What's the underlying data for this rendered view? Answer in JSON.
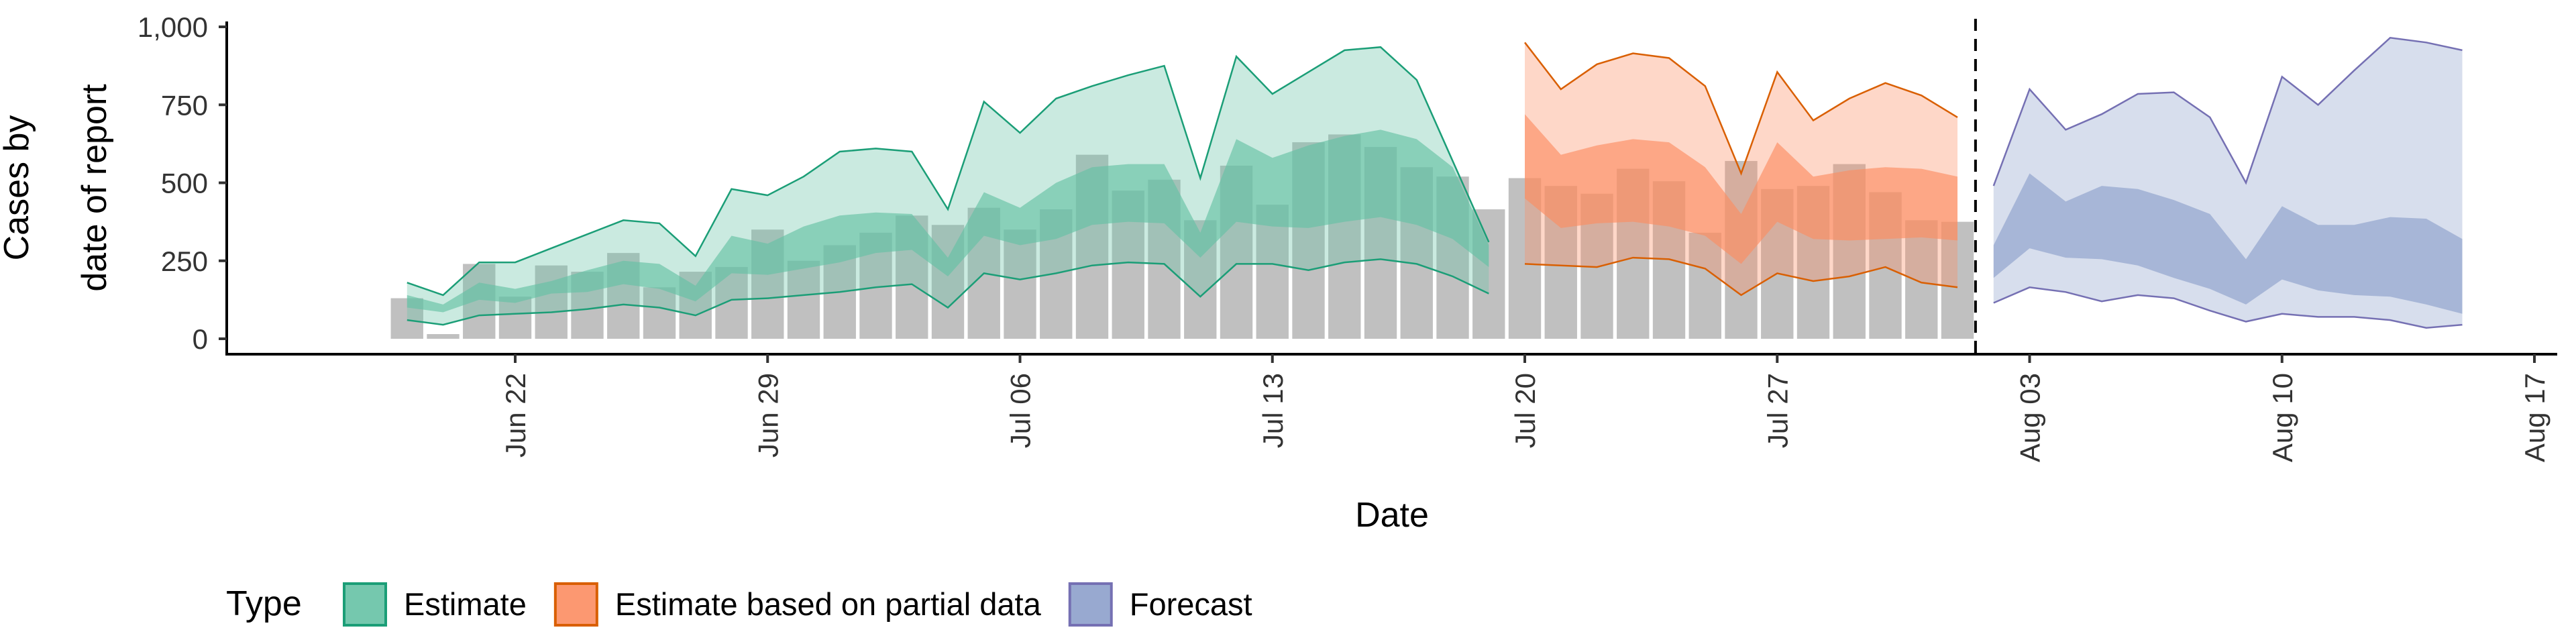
{
  "chart_data": {
    "type": "area",
    "xlabel": "Date",
    "ylabel": [
      "Cases by",
      "date of report"
    ],
    "ylim": [
      0,
      1000
    ],
    "yticks": [
      0,
      250,
      500,
      750,
      1000
    ],
    "ytick_labels": [
      "0",
      "250",
      "500",
      "750",
      "1,000"
    ],
    "xlim": [
      "2020-06-14",
      "2020-08-17"
    ],
    "xticks": [
      "2020-06-22",
      "2020-06-29",
      "2020-07-06",
      "2020-07-13",
      "2020-07-20",
      "2020-07-27",
      "2020-08-03",
      "2020-08-10",
      "2020-08-17"
    ],
    "xtick_labels": [
      "Jun 22",
      "Jun 29",
      "Jul 06",
      "Jul 13",
      "Jul 20",
      "Jul 27",
      "Aug 03",
      "Aug 10",
      "Aug 17"
    ],
    "forecast_date": "2020-08-01",
    "legend_title": "Type",
    "legend_position": "bottom",
    "grid": false,
    "colors": {
      "bar": "#c0c0c0",
      "Estimate": {
        "fill": "#66c2a5",
        "line": "#1b9e77"
      },
      "Estimate based on partial data": {
        "fill": "#fc8d62",
        "line": "#d95f02"
      },
      "Forecast": {
        "fill": "#8da0cb",
        "line": "#7570b3"
      }
    },
    "reported_cases": {
      "dates": [
        "2020-06-19",
        "2020-06-20",
        "2020-06-21",
        "2020-06-22",
        "2020-06-23",
        "2020-06-24",
        "2020-06-25",
        "2020-06-26",
        "2020-06-27",
        "2020-06-28",
        "2020-06-29",
        "2020-06-30",
        "2020-07-01",
        "2020-07-02",
        "2020-07-03",
        "2020-07-04",
        "2020-07-05",
        "2020-07-06",
        "2020-07-07",
        "2020-07-08",
        "2020-07-09",
        "2020-07-10",
        "2020-07-11",
        "2020-07-12",
        "2020-07-13",
        "2020-07-14",
        "2020-07-15",
        "2020-07-16",
        "2020-07-17",
        "2020-07-18",
        "2020-07-19",
        "2020-07-20",
        "2020-07-21",
        "2020-07-22",
        "2020-07-23",
        "2020-07-24",
        "2020-07-25",
        "2020-07-26",
        "2020-07-27",
        "2020-07-28",
        "2020-07-29",
        "2020-07-30",
        "2020-07-31",
        "2020-08-01"
      ],
      "values": [
        130,
        15,
        240,
        135,
        235,
        215,
        275,
        165,
        215,
        230,
        350,
        250,
        300,
        340,
        395,
        365,
        420,
        350,
        415,
        590,
        475,
        510,
        380,
        555,
        430,
        630,
        655,
        615,
        550,
        520,
        415,
        515,
        490,
        465,
        545,
        505,
        340,
        570,
        480,
        490,
        560,
        470,
        380,
        375
      ]
    },
    "series": [
      {
        "name": "Estimate",
        "dates": [
          "2020-06-19",
          "2020-06-20",
          "2020-06-21",
          "2020-06-22",
          "2020-06-23",
          "2020-06-24",
          "2020-06-25",
          "2020-06-26",
          "2020-06-27",
          "2020-06-28",
          "2020-06-29",
          "2020-06-30",
          "2020-07-01",
          "2020-07-02",
          "2020-07-03",
          "2020-07-04",
          "2020-07-05",
          "2020-07-06",
          "2020-07-07",
          "2020-07-08",
          "2020-07-09",
          "2020-07-10",
          "2020-07-11",
          "2020-07-12",
          "2020-07-13",
          "2020-07-14",
          "2020-07-15",
          "2020-07-16",
          "2020-07-17",
          "2020-07-18",
          "2020-07-19"
        ],
        "lower_90": [
          60,
          45,
          75,
          80,
          85,
          95,
          110,
          100,
          75,
          125,
          130,
          140,
          150,
          165,
          175,
          100,
          210,
          190,
          210,
          235,
          245,
          240,
          135,
          240,
          240,
          220,
          245,
          255,
          240,
          200,
          145
        ],
        "lower_50": [
          100,
          85,
          125,
          115,
          145,
          150,
          175,
          160,
          120,
          210,
          205,
          225,
          245,
          275,
          285,
          200,
          330,
          300,
          320,
          365,
          375,
          370,
          260,
          375,
          360,
          355,
          375,
          390,
          365,
          320,
          230
        ],
        "upper_50": [
          140,
          110,
          180,
          160,
          185,
          220,
          250,
          240,
          170,
          330,
          305,
          360,
          395,
          405,
          400,
          260,
          470,
          420,
          500,
          550,
          560,
          560,
          340,
          640,
          580,
          620,
          650,
          670,
          640,
          550,
          300
        ],
        "upper_90": [
          180,
          140,
          245,
          245,
          290,
          335,
          380,
          370,
          265,
          480,
          460,
          520,
          600,
          610,
          600,
          415,
          760,
          660,
          770,
          810,
          845,
          875,
          515,
          905,
          785,
          855,
          925,
          935,
          830,
          570,
          310
        ]
      },
      {
        "name": "Estimate based on partial data",
        "dates": [
          "2020-07-20",
          "2020-07-21",
          "2020-07-22",
          "2020-07-23",
          "2020-07-24",
          "2020-07-25",
          "2020-07-26",
          "2020-07-27",
          "2020-07-28",
          "2020-07-29",
          "2020-07-30",
          "2020-07-31",
          "2020-08-01"
        ],
        "lower_90": [
          240,
          235,
          230,
          260,
          255,
          225,
          140,
          210,
          185,
          200,
          230,
          180,
          165
        ],
        "lower_50": [
          450,
          355,
          370,
          375,
          360,
          330,
          240,
          375,
          320,
          315,
          320,
          325,
          315
        ],
        "upper_50": [
          720,
          590,
          620,
          640,
          630,
          550,
          400,
          630,
          520,
          540,
          550,
          545,
          520
        ],
        "upper_90": [
          950,
          800,
          880,
          915,
          900,
          810,
          530,
          855,
          700,
          770,
          820,
          780,
          710
        ]
      },
      {
        "name": "Forecast",
        "dates": [
          "2020-08-02",
          "2020-08-03",
          "2020-08-04",
          "2020-08-05",
          "2020-08-06",
          "2020-08-07",
          "2020-08-08",
          "2020-08-09",
          "2020-08-10",
          "2020-08-11",
          "2020-08-12",
          "2020-08-13",
          "2020-08-14",
          "2020-08-15"
        ],
        "lower_90": [
          115,
          165,
          150,
          120,
          140,
          130,
          90,
          55,
          80,
          70,
          70,
          60,
          35,
          45
        ],
        "lower_50": [
          195,
          290,
          260,
          255,
          235,
          195,
          160,
          110,
          190,
          155,
          140,
          135,
          110,
          80
        ],
        "upper_50": [
          300,
          530,
          440,
          490,
          480,
          445,
          400,
          255,
          425,
          365,
          365,
          390,
          385,
          320
        ],
        "upper_90": [
          490,
          800,
          670,
          720,
          785,
          790,
          710,
          500,
          840,
          750,
          860,
          965,
          950,
          925
        ]
      }
    ]
  }
}
